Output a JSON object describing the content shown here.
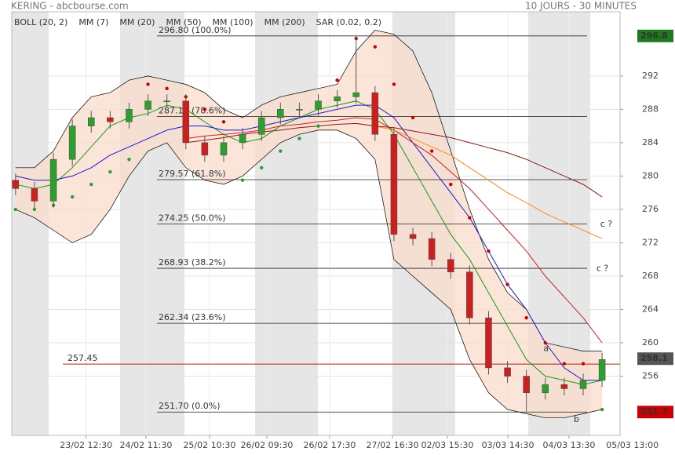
{
  "chart_data": {
    "type": "candlestick",
    "title": "KERING - abcbourse.com",
    "subtitle": "10 JOURS - 30 MINUTES",
    "x": [
      0,
      1,
      2,
      3,
      4,
      5,
      6,
      7,
      8,
      9,
      10,
      11,
      12,
      13,
      14,
      15,
      16,
      17,
      18,
      19,
      20,
      21,
      22,
      23,
      24,
      25,
      26,
      27,
      28,
      29,
      30,
      31
    ],
    "open": [
      279.5,
      278.5,
      277,
      282,
      286,
      287,
      286.5,
      288,
      289,
      289,
      284,
      282.5,
      284,
      285,
      287,
      288,
      288,
      289,
      289.5,
      290,
      285,
      273,
      272.5,
      270,
      268.5,
      263,
      257,
      256,
      254,
      255,
      254.5,
      255.5
    ],
    "high": [
      280.3,
      279.3,
      282.8,
      286.8,
      287.8,
      287.8,
      288.8,
      289.8,
      289.8,
      289.8,
      284.8,
      284.8,
      285.8,
      287.8,
      288.8,
      288.8,
      289.8,
      290.3,
      296.8,
      290.8,
      285.8,
      273.8,
      273.3,
      270.8,
      269.3,
      263.8,
      257.8,
      256.8,
      255.8,
      255.8,
      256.3,
      258.8
    ],
    "low": [
      277.7,
      276.2,
      276.2,
      281.2,
      285.2,
      285.7,
      285.7,
      287.2,
      288.2,
      283.2,
      281.7,
      281.7,
      283.2,
      284.2,
      286.2,
      287.2,
      287.2,
      288.2,
      288.7,
      284.2,
      272.2,
      271.7,
      269.2,
      267.7,
      262.2,
      256.2,
      255.2,
      251.7,
      253.2,
      253.7,
      253.7,
      254.7
    ],
    "close": [
      278.5,
      277,
      282,
      286,
      287,
      286.5,
      288,
      289,
      289,
      284,
      282.5,
      284,
      285,
      287,
      288,
      288,
      289,
      289.5,
      290,
      285,
      273,
      272.5,
      270,
      268.5,
      263,
      257,
      256,
      254,
      255,
      254.5,
      255.5,
      258
    ],
    "up_color": "#2e9e2e",
    "down_color": "#cc2020",
    "bollinger": {
      "name": "BOLL (20, 2)",
      "color": "#000000",
      "fill": "#f9dccb",
      "upper": [
        281,
        281,
        283,
        287,
        289.5,
        290,
        291.5,
        292,
        291.5,
        291,
        290,
        288,
        287,
        288.5,
        289.5,
        290,
        290.5,
        291,
        295,
        297.5,
        297,
        295,
        290,
        283,
        276,
        270,
        266,
        264,
        260,
        259.5,
        259,
        259
      ],
      "lower": [
        276,
        275,
        273.5,
        272,
        273,
        276,
        280,
        283,
        284,
        281,
        279.5,
        279,
        280,
        282,
        284,
        285,
        285.5,
        285.5,
        284.5,
        282,
        270,
        268,
        266,
        264,
        258,
        254,
        252,
        251.5,
        251,
        251,
        251.5,
        252
      ]
    },
    "series": [
      {
        "name": "MM (7)",
        "color": "#1a9a1a",
        "values": [
          279,
          278.5,
          279,
          281,
          283.5,
          286,
          287,
          287.5,
          288.5,
          288,
          286.5,
          285,
          284,
          284.5,
          286,
          287,
          288,
          288.5,
          289,
          288,
          285,
          281,
          277,
          273,
          270,
          266,
          262,
          258,
          256,
          255.5,
          255,
          255.5
        ]
      },
      {
        "name": "MM (20)",
        "color": "#1a1acc",
        "values": [
          280,
          279.5,
          279.5,
          280,
          281,
          282.5,
          283.5,
          284.5,
          285.5,
          286,
          286,
          285.5,
          285.5,
          286,
          286.5,
          287,
          287.5,
          288,
          288.5,
          288.5,
          287,
          284,
          281,
          278,
          275,
          271,
          267,
          264,
          260,
          257,
          255.5,
          255.5
        ]
      },
      {
        "name": "MM (50)",
        "color": "#cc2222",
        "values": [
          null,
          null,
          null,
          null,
          null,
          null,
          null,
          null,
          null,
          284.5,
          284.8,
          285,
          285.2,
          285.5,
          286,
          286.2,
          286.5,
          286.7,
          287,
          286.8,
          285.5,
          284,
          282.5,
          280.5,
          278.5,
          276,
          273.5,
          271,
          268,
          265.5,
          263,
          260
        ]
      },
      {
        "name": "MM (100)",
        "color": "#ff8c1a",
        "values": [
          null,
          null,
          null,
          null,
          null,
          null,
          null,
          null,
          null,
          null,
          null,
          null,
          null,
          null,
          null,
          null,
          null,
          null,
          286.3,
          286,
          285.5,
          284.5,
          283.5,
          282.5,
          281,
          279.5,
          278,
          276.8,
          275.5,
          274.5,
          273.5,
          272.5
        ]
      },
      {
        "name": "MM (200)",
        "color": "#8b1a1a",
        "values": [
          null,
          null,
          null,
          null,
          null,
          null,
          null,
          null,
          null,
          284,
          284.3,
          284.6,
          285,
          285.3,
          285.5,
          285.8,
          286,
          286.2,
          286.3,
          286,
          285.8,
          285.4,
          285,
          284.6,
          284,
          283.4,
          282.8,
          282,
          281,
          280,
          279,
          277.5
        ]
      }
    ],
    "sar": {
      "name": "SAR (0.02, 0.2)",
      "color": "#cc0000",
      "below_color": "#2e9e2e",
      "values": [
        276,
        276,
        276.5,
        277.5,
        279,
        280.5,
        282,
        291,
        290.5,
        289.5,
        288,
        286.5,
        279.5,
        281,
        283,
        284.5,
        286,
        291.5,
        296.5,
        295.5,
        291,
        287,
        283,
        279,
        275,
        271,
        267,
        263,
        260,
        257.5,
        257.5,
        252
      ]
    },
    "fib_levels": [
      {
        "value": 296.8,
        "label": "296.80 (100.0%)"
      },
      {
        "value": 287.15,
        "label": "287.15 (78.6%)"
      },
      {
        "value": 279.57,
        "label": "279.57 (61.8%)"
      },
      {
        "value": 274.25,
        "label": "274.25 (50.0%)"
      },
      {
        "value": 268.93,
        "label": "268.93 (38.2%)"
      },
      {
        "value": 262.34,
        "label": "262.34 (23.6%)"
      },
      {
        "value": 251.7,
        "label": "251.70 (0.0%)"
      }
    ],
    "reference_line": {
      "value": 257.45,
      "label": "257.45",
      "color": "#b22222"
    },
    "price_badges": [
      {
        "value": 296.8,
        "label": "296.8",
        "color": "#1e7a1e"
      },
      {
        "value": 258.1,
        "label": "258.1",
        "color": "#555555"
      },
      {
        "value": 251.7,
        "label": "251.7",
        "color": "#cc0000"
      }
    ],
    "annotations": [
      {
        "text": "a",
        "x": 27.9,
        "y": 259.3
      },
      {
        "text": "b",
        "x": 29.5,
        "y": 250.8
      },
      {
        "text": "c ?",
        "x": 30.9,
        "y": 274.2
      },
      {
        "text": "c ?",
        "x": 30.7,
        "y": 268.9
      }
    ],
    "xlim": [
      -0.2,
      31.95
    ],
    "ylim": [
      248.9,
      299.7
    ],
    "xticks": [
      {
        "value": 3.73,
        "label": "23/02 12:30"
      },
      {
        "value": 6.89,
        "label": "24/02 11:30"
      },
      {
        "value": 10.25,
        "label": "25/02 10:30"
      },
      {
        "value": 13.28,
        "label": "26/02 09:30"
      },
      {
        "value": 16.6,
        "label": "26/02 17:30"
      },
      {
        "value": 19.92,
        "label": "27/02 16:30"
      },
      {
        "value": 22.82,
        "label": "02/03 15:30"
      },
      {
        "value": 26.02,
        "label": "03/03 14:30"
      },
      {
        "value": 29.25,
        "label": "04/03 13:30"
      },
      {
        "value": 32.6,
        "label": "05/03 13:00"
      }
    ],
    "yticks": [
      256,
      260,
      264,
      268,
      272,
      276,
      280,
      284,
      288,
      292
    ],
    "grid": true
  }
}
